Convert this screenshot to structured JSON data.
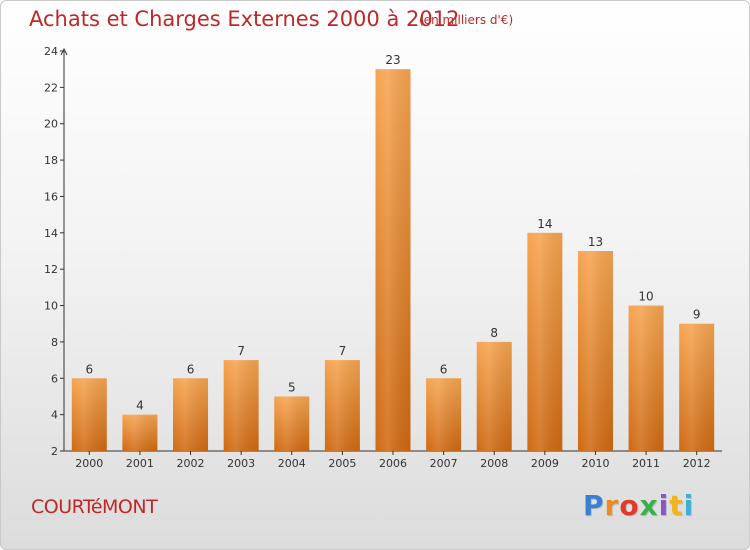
{
  "header": {
    "title": "Achats et Charges Externes 2000 à 2012",
    "unit": "(en milliers d'€)"
  },
  "footer": {
    "place": "COURTéMONT",
    "logo": "Proxiti",
    "logo_colors": [
      "#3a7fd6",
      "#f08a1e",
      "#e23a2a",
      "#3bb04a",
      "#8a55c8",
      "#f0b41e",
      "#3bb0d6"
    ]
  },
  "colors": {
    "bar_top": "#f6a552",
    "bar_bottom": "#cf6a12",
    "title": "#c02828",
    "axis": "#333333"
  },
  "chart_data": {
    "type": "bar",
    "categories": [
      "2000",
      "2001",
      "2002",
      "2003",
      "2004",
      "2005",
      "2006",
      "2007",
      "2008",
      "2009",
      "2010",
      "2011",
      "2012"
    ],
    "values": [
      6,
      4,
      6,
      7,
      5,
      7,
      23,
      6,
      8,
      14,
      13,
      10,
      9
    ],
    "data_labels": [
      "6",
      "4",
      "6",
      "7",
      "5",
      "7",
      "23",
      "6",
      "8",
      "14",
      "13",
      "10",
      "9"
    ],
    "y_ticks": [
      2,
      4,
      6,
      8,
      10,
      12,
      14,
      16,
      18,
      20,
      22,
      24
    ],
    "ylim": [
      2,
      24
    ],
    "grid": false
  }
}
